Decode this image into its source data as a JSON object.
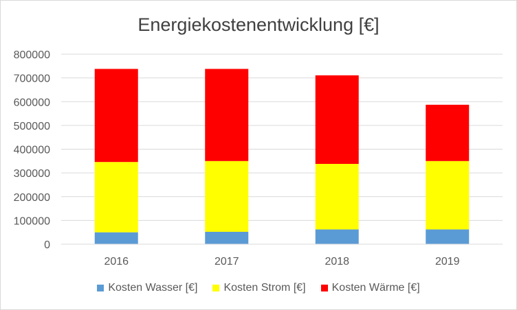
{
  "chart_data": {
    "type": "bar",
    "stacked": true,
    "title": "Energiekostenentwicklung [€]",
    "xlabel": "",
    "ylabel": "",
    "categories": [
      "2016",
      "2017",
      "2018",
      "2019"
    ],
    "series": [
      {
        "name": "Kosten Wasser [€]",
        "color": "#5b9bd5",
        "values": [
          50000,
          52000,
          62000,
          62000
        ]
      },
      {
        "name": "Kosten Strom [€]",
        "color": "#ffff00",
        "values": [
          296000,
          298000,
          276000,
          288000
        ]
      },
      {
        "name": "Kosten Wärme [€]",
        "color": "#ff0000",
        "values": [
          392000,
          388000,
          373000,
          237000
        ]
      }
    ],
    "ylim": [
      0,
      800000
    ],
    "yticks": [
      "0",
      "100000",
      "200000",
      "300000",
      "400000",
      "500000",
      "600000",
      "700000",
      "800000"
    ],
    "grid": true,
    "legend_position": "bottom"
  }
}
